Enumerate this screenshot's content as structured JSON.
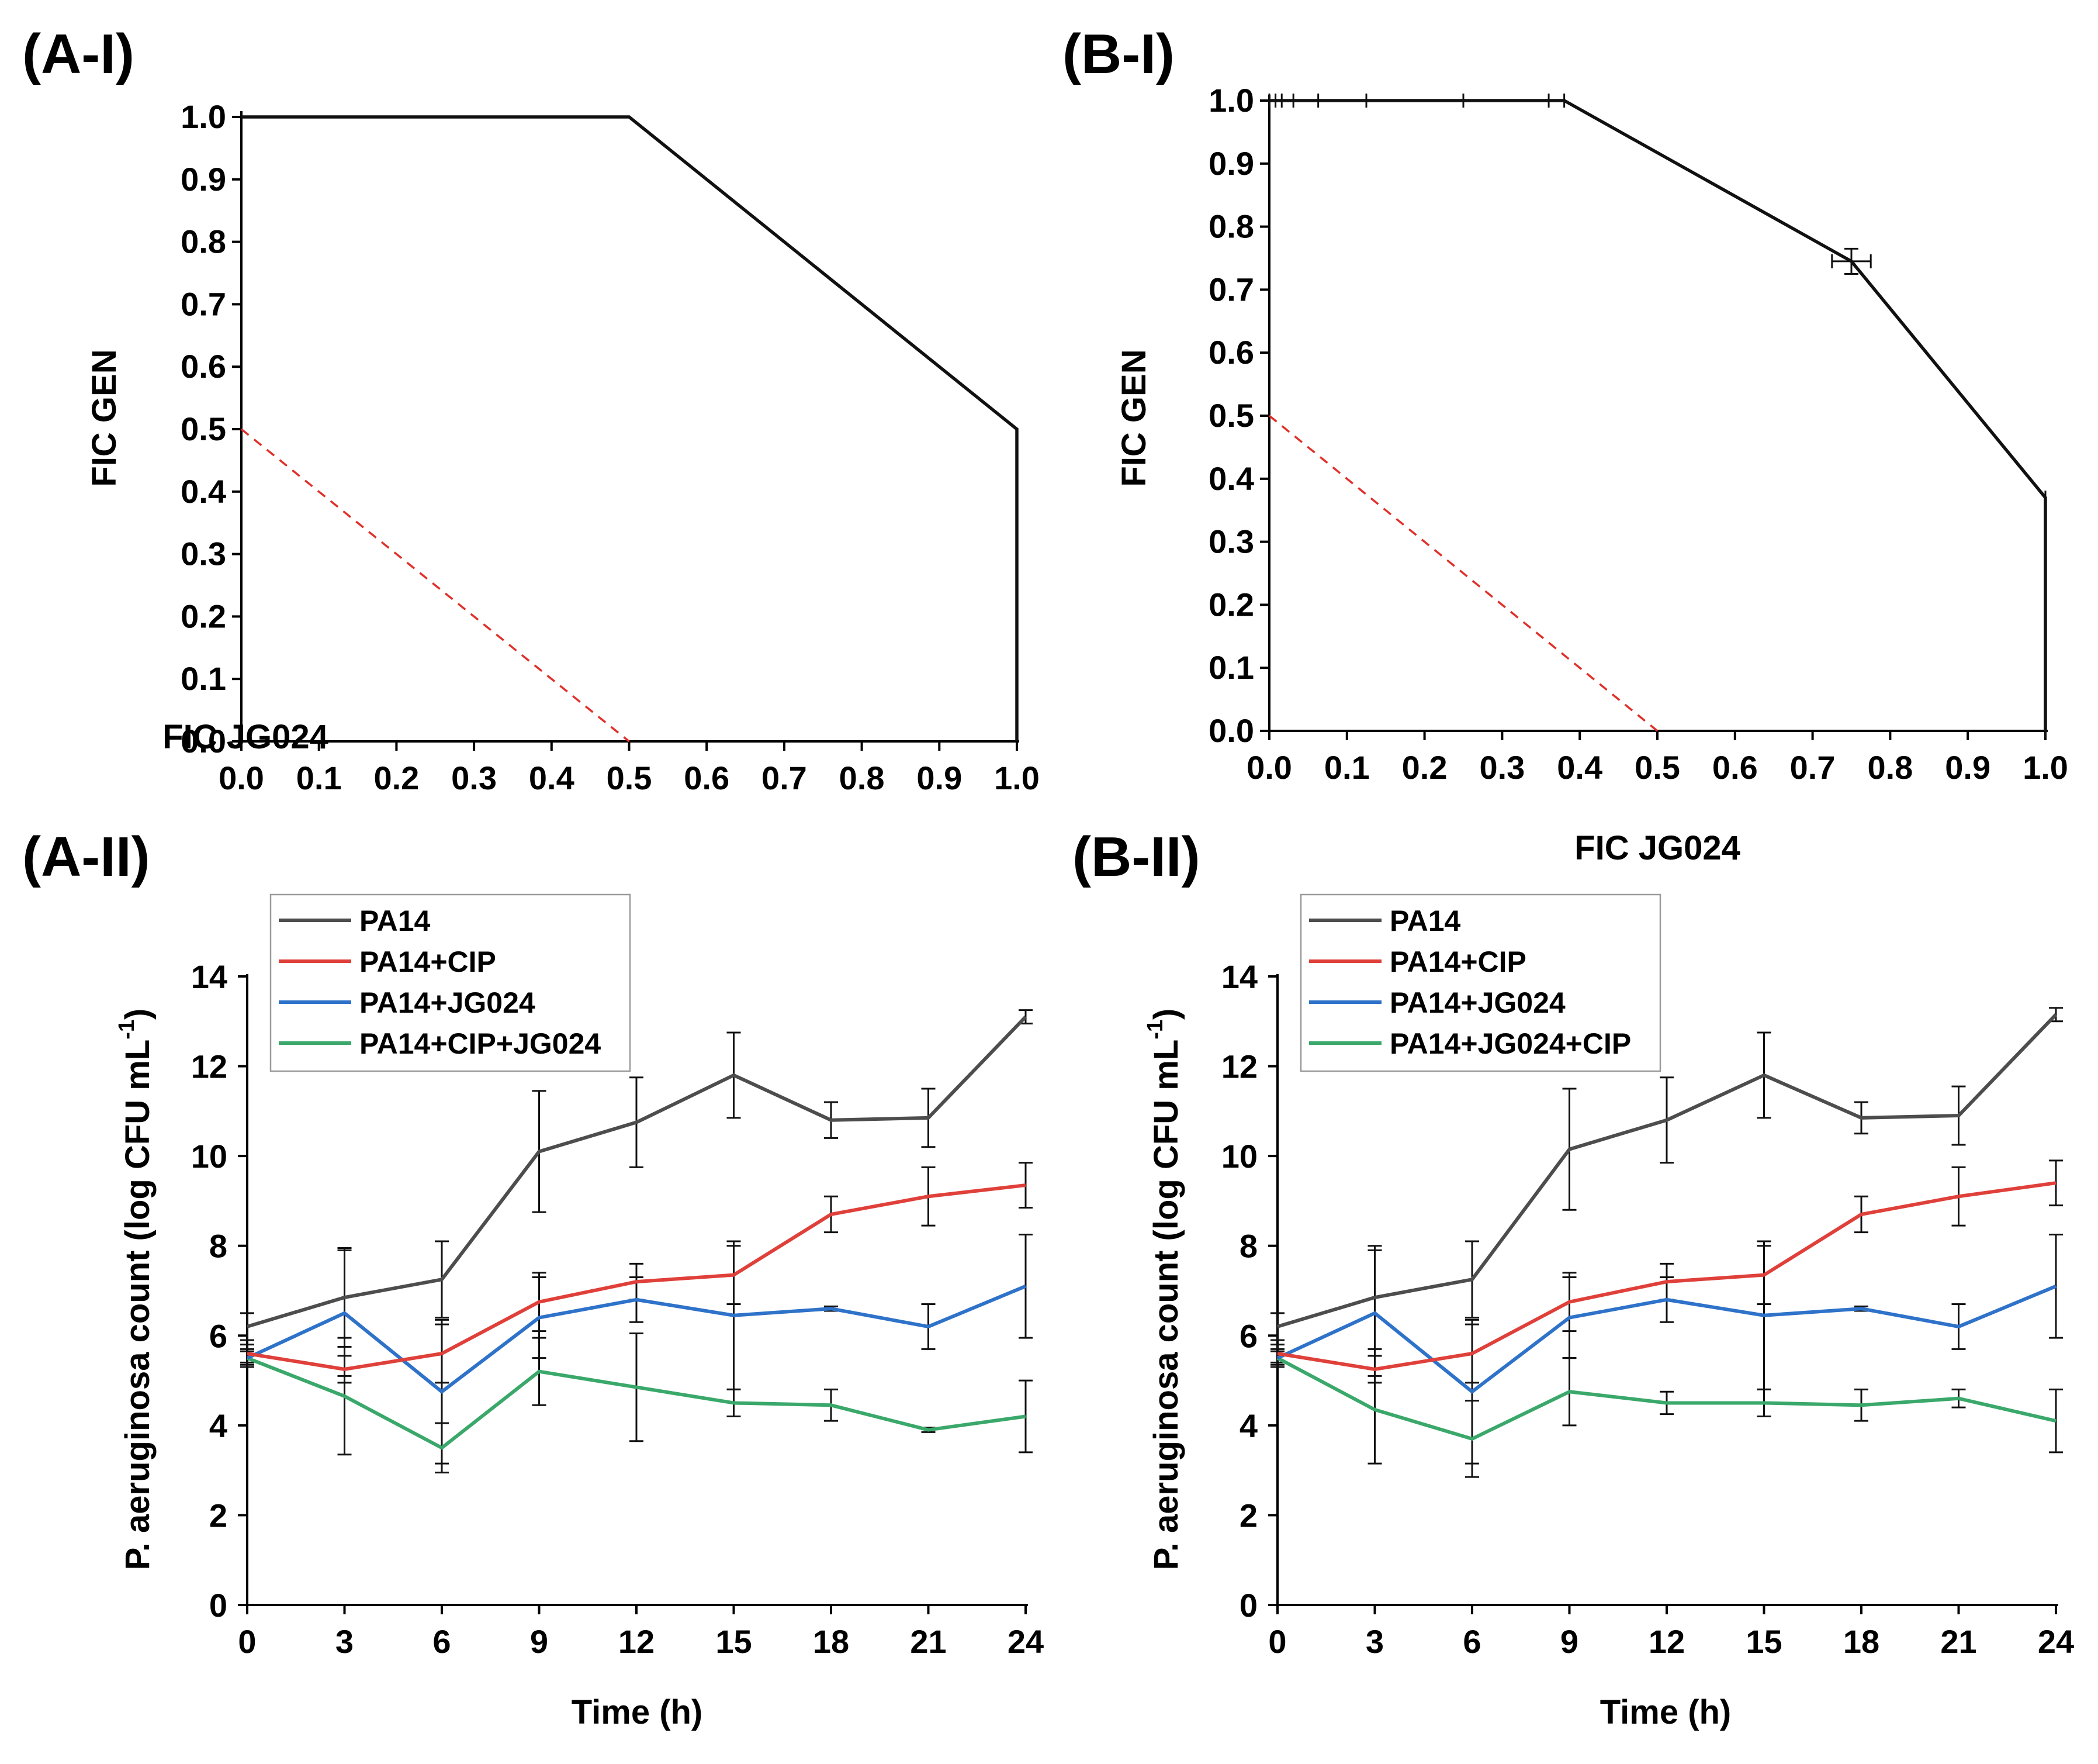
{
  "chart_data": [
    {
      "id": "A-I",
      "panel_label": "(A-I)",
      "type": "line",
      "xlabel": "FIC JG024",
      "ylabel": "FIC GEN",
      "xlim": [
        0,
        1
      ],
      "ylim": [
        0,
        1
      ],
      "x_ticks": [
        "0.0",
        "0.1",
        "0.2",
        "0.3",
        "0.4",
        "0.5",
        "0.6",
        "0.7",
        "0.8",
        "0.9",
        "1.0"
      ],
      "y_ticks": [
        "0.0",
        "0.1",
        "0.2",
        "0.3",
        "0.4",
        "0.5",
        "0.6",
        "0.7",
        "0.8",
        "0.9",
        "1.0"
      ],
      "series": [
        {
          "name": "isobologram",
          "color": "#111111",
          "x": [
            0.0,
            0.5,
            1.0,
            1.0
          ],
          "y": [
            1.0,
            1.0,
            0.5,
            0.0
          ]
        }
      ],
      "reference_line": {
        "name": "additivity line",
        "color": "#e0302a",
        "style": "dashed",
        "x": [
          0.0,
          0.5
        ],
        "y": [
          0.5,
          0.0
        ]
      }
    },
    {
      "id": "B-I",
      "panel_label": "(B-I)",
      "type": "line",
      "xlabel": "FIC JG024",
      "ylabel": "FIC GEN",
      "xlim": [
        0,
        1
      ],
      "ylim": [
        0,
        1
      ],
      "x_ticks": [
        "0.0",
        "0.1",
        "0.2",
        "0.3",
        "0.4",
        "0.5",
        "0.6",
        "0.7",
        "0.8",
        "0.9",
        "1.0"
      ],
      "y_ticks": [
        "0.0",
        "0.1",
        "0.2",
        "0.3",
        "0.4",
        "0.5",
        "0.6",
        "0.7",
        "0.8",
        "0.9",
        "1.0"
      ],
      "series": [
        {
          "name": "isobologram",
          "color": "#111111",
          "x": [
            0.0,
            0.008,
            0.016,
            0.031,
            0.063,
            0.125,
            0.25,
            0.36,
            0.38,
            0.75,
            1.0,
            1.0,
            1.0,
            1.0,
            1.0,
            1.0
          ],
          "y": [
            1.0,
            1.0,
            1.0,
            1.0,
            1.0,
            1.0,
            1.0,
            1.0,
            1.0,
            0.745,
            0.37,
            0.24,
            0.115,
            0.055,
            0.03,
            0.0
          ],
          "y_err": [
            0,
            0,
            0,
            0,
            0,
            0,
            0,
            0,
            0,
            0.02,
            0,
            0,
            0,
            0,
            0,
            0
          ],
          "x_err": [
            0,
            0,
            0,
            0,
            0,
            0,
            0,
            0,
            0,
            0.025,
            0,
            0,
            0,
            0,
            0,
            0
          ]
        }
      ],
      "reference_line": {
        "name": "additivity line",
        "color": "#e0302a",
        "style": "dashed",
        "x": [
          0.0,
          0.5
        ],
        "y": [
          0.5,
          0.0
        ]
      }
    },
    {
      "id": "A-II",
      "panel_label": "(A-II)",
      "type": "line",
      "xlabel": "Time (h)",
      "ylabel": "P. aeruginosa count (log CFU mL",
      "ylabel_sup": "-1",
      "ylabel_end": ")",
      "xlim": [
        0,
        24
      ],
      "ylim": [
        0,
        14
      ],
      "x": [
        0,
        3,
        6,
        9,
        12,
        15,
        18,
        21,
        24
      ],
      "x_ticks": [
        "0",
        "3",
        "6",
        "9",
        "12",
        "15",
        "18",
        "21",
        "24"
      ],
      "y_ticks": [
        "0",
        "2",
        "4",
        "6",
        "8",
        "10",
        "12",
        "14"
      ],
      "legend_position": "top-left",
      "series": [
        {
          "name": "PA14",
          "color": "#4d4d4d",
          "values": [
            6.2,
            6.85,
            7.25,
            10.1,
            10.75,
            11.8,
            10.8,
            10.85,
            13.1
          ],
          "errors": [
            0.3,
            1.1,
            0.85,
            1.35,
            1.0,
            0.95,
            0.4,
            0.65,
            0.15
          ]
        },
        {
          "name": "PA14+CIP",
          "color": "#e0403a",
          "values": [
            5.6,
            5.25,
            5.6,
            6.75,
            7.2,
            7.35,
            8.7,
            9.1,
            9.35
          ],
          "errors": [
            0.2,
            0.3,
            0.65,
            0.65,
            0.4,
            0.65,
            0.4,
            0.65,
            0.5
          ]
        },
        {
          "name": "PA14+JG024",
          "color": "#2e72c9",
          "values": [
            5.5,
            6.5,
            4.75,
            6.4,
            6.8,
            6.45,
            6.6,
            6.2,
            7.1
          ],
          "errors": [
            0.15,
            1.4,
            1.6,
            0.9,
            0.5,
            1.65,
            0.05,
            0.5,
            1.15
          ]
        },
        {
          "name": "PA14+CIP+JG024",
          "color": "#3aa86a",
          "values": [
            5.5,
            4.65,
            3.5,
            5.2,
            4.85,
            4.5,
            4.45,
            3.9,
            4.2
          ],
          "errors": [
            0.2,
            1.3,
            0.55,
            0.75,
            1.2,
            0.3,
            0.35,
            0.05,
            0.8
          ]
        }
      ]
    },
    {
      "id": "B-II",
      "panel_label": "(B-II)",
      "type": "line",
      "xlabel": "Time (h)",
      "ylabel": "P. aeruginosa count (log CFU mL",
      "ylabel_sup": "-1",
      "ylabel_end": ")",
      "xlim": [
        0,
        24
      ],
      "ylim": [
        0,
        14
      ],
      "x": [
        0,
        3,
        6,
        9,
        12,
        15,
        18,
        21,
        24
      ],
      "x_ticks": [
        "0",
        "3",
        "6",
        "9",
        "12",
        "15",
        "18",
        "21",
        "24"
      ],
      "y_ticks": [
        "0",
        "2",
        "4",
        "6",
        "8",
        "10",
        "12",
        "14"
      ],
      "legend_position": "top-left",
      "series": [
        {
          "name": "PA14",
          "color": "#4d4d4d",
          "values": [
            6.2,
            6.85,
            7.25,
            10.15,
            10.8,
            11.8,
            10.85,
            10.9,
            13.15
          ],
          "errors": [
            0.3,
            1.15,
            0.85,
            1.35,
            0.95,
            0.95,
            0.35,
            0.65,
            0.15
          ]
        },
        {
          "name": "PA14+CIP",
          "color": "#e0403a",
          "values": [
            5.6,
            5.25,
            5.6,
            6.75,
            7.2,
            7.35,
            8.7,
            9.1,
            9.4
          ],
          "errors": [
            0.2,
            0.3,
            0.65,
            0.65,
            0.4,
            0.65,
            0.4,
            0.65,
            0.5
          ]
        },
        {
          "name": "PA14+JG024",
          "color": "#2e72c9",
          "values": [
            5.5,
            6.5,
            4.75,
            6.4,
            6.8,
            6.45,
            6.6,
            6.2,
            7.1
          ],
          "errors": [
            0.15,
            1.4,
            1.6,
            0.9,
            0.5,
            1.65,
            0.05,
            0.5,
            1.15
          ]
        },
        {
          "name": "PA14+JG024+CIP",
          "color": "#3aa86a",
          "values": [
            5.5,
            4.35,
            3.7,
            4.75,
            4.5,
            4.5,
            4.45,
            4.6,
            4.1
          ],
          "errors": [
            0.2,
            1.2,
            0.85,
            0.75,
            0.25,
            0.3,
            0.35,
            0.2,
            0.7
          ]
        }
      ]
    }
  ]
}
